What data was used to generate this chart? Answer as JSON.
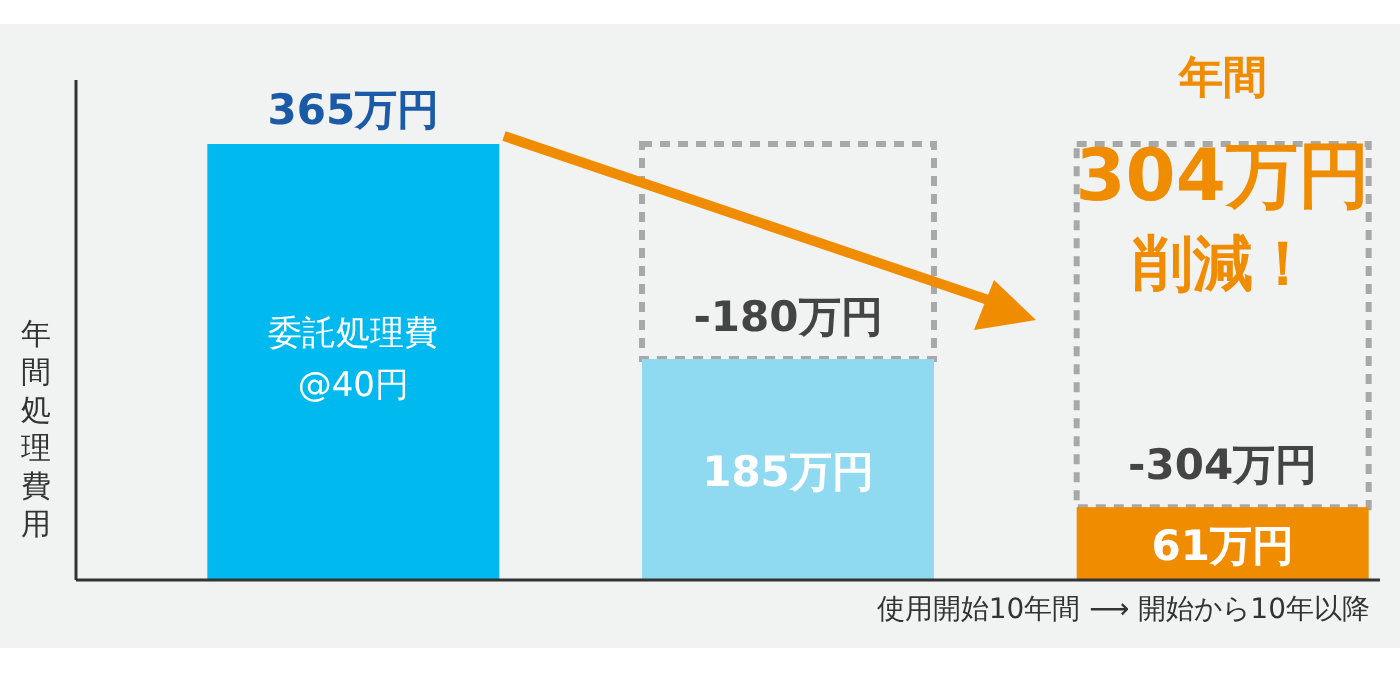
{
  "chart_data": {
    "type": "bar",
    "categories": [
      null,
      null,
      null
    ],
    "colors": [
      "#00b9ef",
      "#8fdaf1",
      "#f08c00"
    ],
    "values": [
      365,
      185,
      61
    ],
    "value_labels": [
      "365万円",
      "185万円",
      "61万円"
    ],
    "ylabel": "年間処理費用",
    "xlabel": "使用開始10年間 ⟶ 開始から10年以降",
    "annotations": [
      "委託処理費\n@40円",
      "-180万円",
      "-304万円",
      "年間",
      "304万円",
      "削減！"
    ]
  }
}
